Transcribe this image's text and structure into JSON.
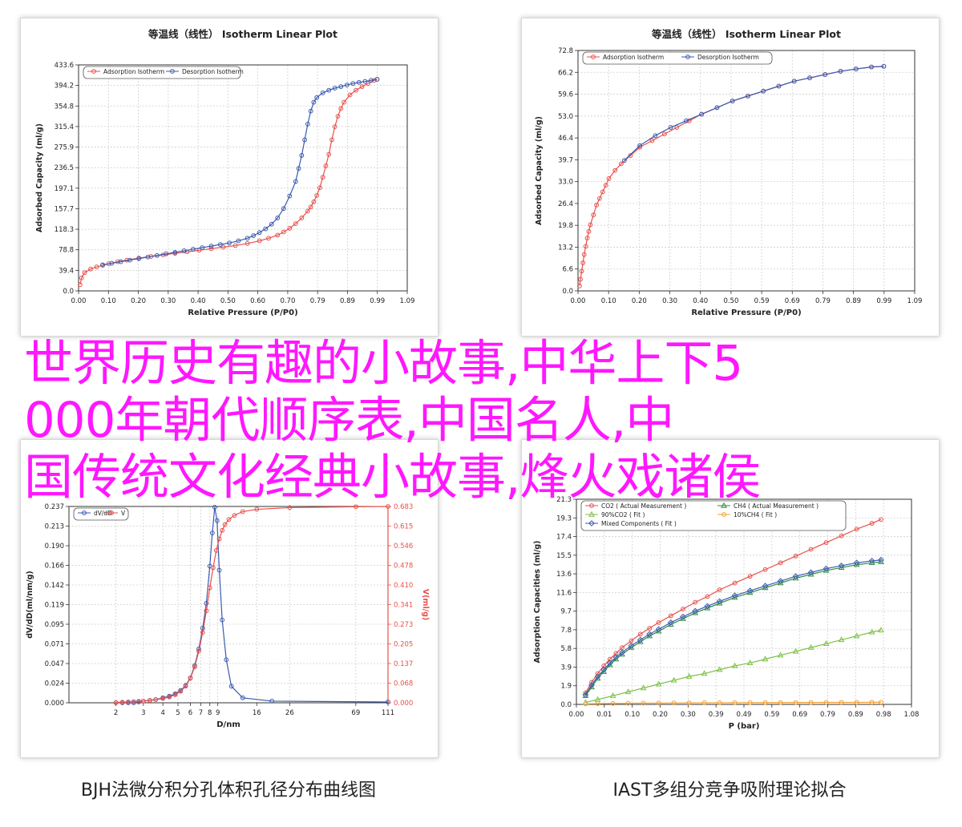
{
  "overlay_lines": [
    "世界历史有趣的小故事,中华上下5",
    "000年朝代顺序表,中国名人,中",
    "国传统文化经典小故事,烽火戏诸侯"
  ],
  "captions": {
    "bottom_left": "BJH法微分积分孔体积孔径分布曲线图",
    "bottom_right": "IAST多组分竞争吸附理论拟合"
  },
  "chart_data": [
    {
      "type": "line",
      "title": "等温线（线性） Isotherm Linear Plot",
      "xlabel": "Relative Pressure (P/P0)",
      "ylabel": "Adsorbed Capacity (ml/g)",
      "xticks": [
        "0.00",
        "0.10",
        "0.20",
        "0.30",
        "0.40",
        "0.50",
        "0.60",
        "0.70",
        "0.79",
        "0.89",
        "0.99",
        "1.09"
      ],
      "yticks": [
        "0.0",
        "39.4",
        "78.8",
        "118.3",
        "157.7",
        "197.1",
        "236.5",
        "275.9",
        "315.4",
        "354.8",
        "394.2",
        "433.6"
      ],
      "xlim": [
        0,
        1.09
      ],
      "ylim": [
        0,
        433.6
      ],
      "legend": "top-left",
      "grid": true,
      "series": [
        {
          "name": "Adsorption Isotherm",
          "color": "#e8504a",
          "marker": "circle",
          "x": [
            0.005,
            0.01,
            0.02,
            0.04,
            0.06,
            0.08,
            0.1,
            0.13,
            0.16,
            0.2,
            0.24,
            0.28,
            0.32,
            0.36,
            0.4,
            0.44,
            0.48,
            0.52,
            0.56,
            0.6,
            0.63,
            0.66,
            0.68,
            0.7,
            0.72,
            0.74,
            0.76,
            0.77,
            0.78,
            0.79,
            0.8,
            0.81,
            0.82,
            0.83,
            0.84,
            0.85,
            0.86,
            0.87,
            0.88,
            0.9,
            0.92,
            0.94,
            0.96,
            0.98,
            0.99
          ],
          "y": [
            12,
            25,
            35,
            42,
            46,
            49,
            52,
            56,
            59,
            63,
            66,
            69,
            72,
            75,
            78,
            81,
            84,
            87,
            91,
            96,
            101,
            107,
            113,
            120,
            129,
            140,
            153,
            161,
            171,
            183,
            198,
            218,
            240,
            262,
            290,
            315,
            335,
            350,
            362,
            376,
            385,
            392,
            398,
            404,
            406
          ]
        },
        {
          "name": "Desorption Isotherm",
          "color": "#3a5bb0",
          "marker": "circle",
          "x": [
            0.99,
            0.97,
            0.95,
            0.93,
            0.91,
            0.89,
            0.87,
            0.85,
            0.83,
            0.81,
            0.79,
            0.78,
            0.77,
            0.76,
            0.75,
            0.74,
            0.73,
            0.72,
            0.7,
            0.68,
            0.66,
            0.64,
            0.62,
            0.6,
            0.58,
            0.56,
            0.53,
            0.5,
            0.47,
            0.44,
            0.41,
            0.38,
            0.35,
            0.32,
            0.29,
            0.26,
            0.23,
            0.2,
            0.17,
            0.14,
            0.11,
            0.08
          ],
          "y": [
            406,
            404,
            402,
            400,
            398,
            395,
            392,
            389,
            385,
            380,
            371,
            362,
            345,
            320,
            290,
            260,
            235,
            210,
            182,
            158,
            140,
            128,
            119,
            112,
            106,
            101,
            96,
            92,
            89,
            86,
            83,
            80,
            77,
            74,
            71,
            68,
            65,
            62,
            59,
            56,
            53,
            50
          ]
        }
      ]
    },
    {
      "type": "line",
      "title": "等温线（线性） Isotherm Linear Plot",
      "xlabel": "Relative Pressure (P/P0)",
      "ylabel": "Adsorbed Capacity (ml/g)",
      "xticks": [
        "0.00",
        "0.10",
        "0.20",
        "0.30",
        "0.40",
        "0.50",
        "0.59",
        "0.69",
        "0.79",
        "0.89",
        "0.99",
        "1.09"
      ],
      "yticks": [
        "0.0",
        "6.6",
        "13.2",
        "19.8",
        "26.4",
        "33.0",
        "39.7",
        "46.4",
        "53.0",
        "59.6",
        "66.2",
        "72.8"
      ],
      "xlim": [
        0,
        1.09
      ],
      "ylim": [
        0,
        72.8
      ],
      "legend": "top-left",
      "grid": true,
      "series": [
        {
          "name": "Adsorption Isotherm",
          "color": "#e8504a",
          "marker": "circle",
          "x": [
            0.005,
            0.008,
            0.012,
            0.016,
            0.02,
            0.025,
            0.03,
            0.035,
            0.04,
            0.05,
            0.06,
            0.07,
            0.08,
            0.09,
            0.1,
            0.12,
            0.14,
            0.17,
            0.2,
            0.24,
            0.28,
            0.32,
            0.36,
            0.4,
            0.45,
            0.5,
            0.55,
            0.6,
            0.65,
            0.7,
            0.75,
            0.8,
            0.85,
            0.9,
            0.95,
            0.99
          ],
          "y": [
            1.5,
            3.5,
            6,
            8.5,
            11,
            13.5,
            16,
            18,
            20,
            23,
            26,
            28,
            30,
            32,
            34,
            36.5,
            38.5,
            41,
            43.5,
            45.5,
            47.5,
            49.5,
            51.5,
            53.5,
            55.5,
            57.5,
            59,
            60.5,
            62,
            63.5,
            64.5,
            65.5,
            66.5,
            67.2,
            67.8,
            68
          ]
        },
        {
          "name": "Desorption Isotherm",
          "color": "#3a5bb0",
          "marker": "circle",
          "x": [
            0.99,
            0.95,
            0.9,
            0.85,
            0.8,
            0.75,
            0.7,
            0.65,
            0.6,
            0.55,
            0.5,
            0.45,
            0.4,
            0.35,
            0.3,
            0.25,
            0.2,
            0.15
          ],
          "y": [
            68,
            67.8,
            67.2,
            66.5,
            65.5,
            64.5,
            63.5,
            62,
            60.5,
            59,
            57.5,
            55.5,
            53.5,
            51.5,
            49.5,
            47,
            44,
            39.5
          ]
        }
      ]
    },
    {
      "type": "line",
      "title": "",
      "xlabel": "D/nm",
      "ylabel": "dV/dD(ml/nm/g)",
      "y2label": "V(ml/g)",
      "xscale": "log",
      "xticks": [
        "2",
        "3",
        "4",
        "5",
        "6",
        "7",
        "8",
        "9",
        "16",
        "26",
        "69",
        "111"
      ],
      "yticks": [
        "0.000",
        "0.024",
        "0.047",
        "0.071",
        "0.095",
        "0.119",
        "0.142",
        "0.166",
        "0.190",
        "0.213",
        "0.237"
      ],
      "y2ticks": [
        "0.000",
        "0.068",
        "0.137",
        "0.205",
        "0.273",
        "0.341",
        "0.410",
        "0.478",
        "0.546",
        "0.615",
        "0.683"
      ],
      "xlim": [
        1,
        111
      ],
      "ylim": [
        0,
        0.237
      ],
      "y2lim": [
        0,
        0.683
      ],
      "legend": "top-left",
      "grid": true,
      "series": [
        {
          "name": "dV/dD",
          "color": "#3a5bb0",
          "marker": "circle",
          "axis": "left",
          "x": [
            2,
            2.2,
            2.4,
            2.6,
            2.8,
            3,
            3.3,
            3.6,
            4,
            4.4,
            4.8,
            5.2,
            5.6,
            6,
            6.4,
            6.8,
            7.2,
            7.6,
            8,
            8.3,
            8.6,
            8.9,
            9.2,
            9.6,
            10.2,
            11,
            13,
            20,
            111
          ],
          "y": [
            0,
            0,
            0,
            0,
            0.001,
            0.002,
            0.003,
            0.004,
            0.006,
            0.008,
            0.011,
            0.015,
            0.021,
            0.03,
            0.045,
            0.065,
            0.09,
            0.12,
            0.165,
            0.205,
            0.236,
            0.22,
            0.16,
            0.1,
            0.052,
            0.02,
            0.006,
            0.002,
            0.001
          ]
        },
        {
          "name": "V",
          "color": "#e8504a",
          "marker": "circle",
          "axis": "right",
          "x": [
            2,
            2.2,
            2.4,
            2.6,
            2.8,
            3,
            3.3,
            3.6,
            4,
            4.4,
            4.8,
            5.2,
            5.6,
            6,
            6.4,
            6.8,
            7.2,
            7.6,
            8,
            8.4,
            8.8,
            9.2,
            9.6,
            10,
            10.6,
            11.5,
            13,
            16,
            26,
            69,
            111
          ],
          "y": [
            0.001,
            0.002,
            0.003,
            0.004,
            0.005,
            0.006,
            0.008,
            0.011,
            0.015,
            0.02,
            0.028,
            0.04,
            0.058,
            0.085,
            0.125,
            0.18,
            0.245,
            0.32,
            0.4,
            0.47,
            0.53,
            0.57,
            0.6,
            0.62,
            0.638,
            0.652,
            0.665,
            0.673,
            0.679,
            0.682,
            0.683
          ]
        }
      ]
    },
    {
      "type": "line",
      "title": "",
      "xlabel": "P (bar)",
      "ylabel": "Adsorption Capacities (ml/g)",
      "xticks": [
        "0.00",
        "0.01",
        "0.10",
        "0.20",
        "0.30",
        "0.39",
        "0.49",
        "0.59",
        "0.69",
        "0.79",
        "0.89",
        "0.98",
        "1.08"
      ],
      "yticks": [
        "0.0",
        "1.9",
        "3.9",
        "5.8",
        "7.8",
        "9.7",
        "11.6",
        "13.6",
        "15.5",
        "17.4",
        "19.3",
        "21.3"
      ],
      "xlim": [
        -0.02,
        1.08
      ],
      "ylim": [
        0,
        21.3
      ],
      "legend": "top-left",
      "grid": true,
      "series": [
        {
          "name": "CO2 ( Actual Measurement )",
          "color": "#e8504a",
          "marker": "circle",
          "x": [
            0.01,
            0.03,
            0.05,
            0.07,
            0.09,
            0.11,
            0.13,
            0.16,
            0.19,
            0.22,
            0.25,
            0.29,
            0.33,
            0.37,
            0.41,
            0.45,
            0.5,
            0.55,
            0.6,
            0.65,
            0.7,
            0.75,
            0.8,
            0.85,
            0.9,
            0.95,
            0.98
          ],
          "y": [
            1.2,
            2.3,
            3.2,
            4,
            4.7,
            5.3,
            5.9,
            6.6,
            7.3,
            7.9,
            8.5,
            9.2,
            9.9,
            10.6,
            11.2,
            11.9,
            12.6,
            13.3,
            14,
            14.7,
            15.4,
            16.1,
            16.8,
            17.5,
            18.2,
            18.8,
            19.2
          ]
        },
        {
          "name": "CH4 ( Actual Measurement )",
          "color": "#2e8b3f",
          "marker": "triangle",
          "x": [
            0.01,
            0.03,
            0.05,
            0.07,
            0.09,
            0.11,
            0.13,
            0.16,
            0.19,
            0.22,
            0.25,
            0.29,
            0.33,
            0.37,
            0.41,
            0.45,
            0.5,
            0.55,
            0.6,
            0.65,
            0.7,
            0.75,
            0.8,
            0.85,
            0.9,
            0.95,
            0.98
          ],
          "y": [
            0.9,
            1.8,
            2.7,
            3.4,
            4.1,
            4.7,
            5.2,
            5.9,
            6.5,
            7.1,
            7.6,
            8.3,
            8.9,
            9.5,
            10,
            10.5,
            11.1,
            11.6,
            12.1,
            12.6,
            13.1,
            13.5,
            13.9,
            14.2,
            14.5,
            14.7,
            14.8
          ]
        },
        {
          "name": "90%CO2 ( Fit )",
          "color": "#7cc043",
          "marker": "triangle",
          "x": [
            0.01,
            0.05,
            0.1,
            0.15,
            0.2,
            0.25,
            0.3,
            0.35,
            0.4,
            0.45,
            0.5,
            0.55,
            0.6,
            0.65,
            0.7,
            0.75,
            0.8,
            0.85,
            0.9,
            0.95,
            0.98
          ],
          "y": [
            0.2,
            0.5,
            0.9,
            1.3,
            1.7,
            2.1,
            2.5,
            2.9,
            3.2,
            3.6,
            4,
            4.3,
            4.7,
            5.1,
            5.5,
            5.9,
            6.3,
            6.7,
            7.1,
            7.5,
            7.7
          ]
        },
        {
          "name": "10%CH4 ( Fit )",
          "color": "#f0a032",
          "marker": "circle",
          "x": [
            0.01,
            0.05,
            0.1,
            0.15,
            0.2,
            0.25,
            0.3,
            0.35,
            0.4,
            0.45,
            0.5,
            0.55,
            0.6,
            0.65,
            0.7,
            0.75,
            0.8,
            0.85,
            0.9,
            0.95,
            0.98
          ],
          "y": [
            0.05,
            0.08,
            0.1,
            0.12,
            0.13,
            0.14,
            0.15,
            0.16,
            0.17,
            0.17,
            0.18,
            0.18,
            0.19,
            0.19,
            0.2,
            0.2,
            0.21,
            0.21,
            0.21,
            0.22,
            0.22
          ]
        },
        {
          "name": "Mixed Components ( Fit )",
          "color": "#3a5bb0",
          "marker": "diamond",
          "x": [
            0.01,
            0.03,
            0.05,
            0.07,
            0.09,
            0.11,
            0.13,
            0.16,
            0.19,
            0.22,
            0.25,
            0.29,
            0.33,
            0.37,
            0.41,
            0.45,
            0.5,
            0.55,
            0.6,
            0.65,
            0.7,
            0.75,
            0.8,
            0.85,
            0.9,
            0.95,
            0.98
          ],
          "y": [
            1,
            2,
            2.9,
            3.6,
            4.3,
            4.9,
            5.4,
            6.1,
            6.7,
            7.3,
            7.8,
            8.5,
            9.1,
            9.7,
            10.2,
            10.7,
            11.3,
            11.8,
            12.3,
            12.8,
            13.3,
            13.7,
            14.1,
            14.4,
            14.7,
            14.9,
            15
          ]
        }
      ]
    }
  ]
}
